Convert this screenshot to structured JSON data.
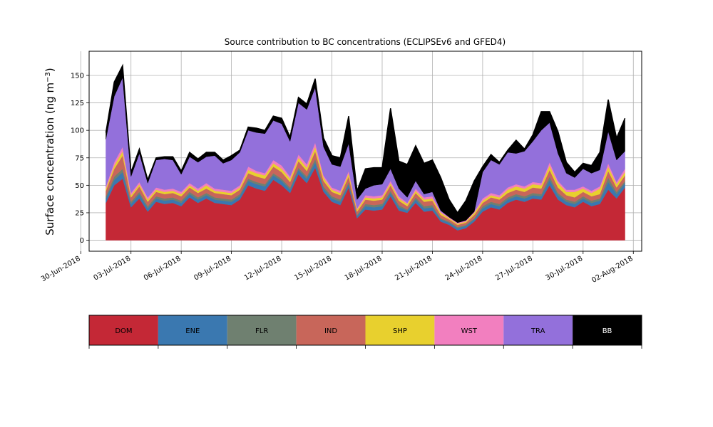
{
  "chart_data": {
    "type": "area",
    "title": "Source contribution to BC concentrations (ECLIPSEv6 and GFED4)",
    "ylabel": "Surface concentration (ng m",
    "ylabel_sup": "−3",
    "ylabel_close": ")",
    "xlabel": "",
    "ylim": [
      -10,
      172
    ],
    "yticks": [
      0,
      25,
      50,
      75,
      100,
      125,
      150
    ],
    "xlim": [
      "2018-06-30T12:00",
      "2018-08-02T12:00"
    ],
    "xticks": [
      "30-Jun-2018",
      "03-Jul-2018",
      "06-Jul-2018",
      "09-Jul-2018",
      "12-Jul-2018",
      "15-Jul-2018",
      "18-Jul-2018",
      "21-Jul-2018",
      "24-Jul-2018",
      "27-Jul-2018",
      "30-Jul-2018",
      "02-Aug-2018"
    ],
    "xtick_dates": [
      "2018-06-30",
      "2018-07-03",
      "2018-07-06",
      "2018-07-09",
      "2018-07-12",
      "2018-07-15",
      "2018-07-18",
      "2018-07-21",
      "2018-07-24",
      "2018-07-27",
      "2018-07-30",
      "2018-08-02"
    ],
    "grid": true,
    "legend_position": "below",
    "x": [
      "2018-07-01T12:00",
      "2018-07-02T00:00",
      "2018-07-02T12:00",
      "2018-07-03T00:00",
      "2018-07-03T12:00",
      "2018-07-04T00:00",
      "2018-07-04T12:00",
      "2018-07-05T00:00",
      "2018-07-05T12:00",
      "2018-07-06T00:00",
      "2018-07-06T12:00",
      "2018-07-07T00:00",
      "2018-07-07T12:00",
      "2018-07-08T00:00",
      "2018-07-08T12:00",
      "2018-07-09T00:00",
      "2018-07-09T12:00",
      "2018-07-10T00:00",
      "2018-07-10T12:00",
      "2018-07-11T00:00",
      "2018-07-11T12:00",
      "2018-07-12T00:00",
      "2018-07-12T12:00",
      "2018-07-13T00:00",
      "2018-07-13T12:00",
      "2018-07-14T00:00",
      "2018-07-14T12:00",
      "2018-07-15T00:00",
      "2018-07-15T12:00",
      "2018-07-16T00:00",
      "2018-07-16T12:00",
      "2018-07-17T00:00",
      "2018-07-17T12:00",
      "2018-07-18T00:00",
      "2018-07-18T12:00",
      "2018-07-19T00:00",
      "2018-07-19T12:00",
      "2018-07-20T00:00",
      "2018-07-20T12:00",
      "2018-07-21T00:00",
      "2018-07-21T12:00",
      "2018-07-22T00:00",
      "2018-07-22T12:00",
      "2018-07-23T00:00",
      "2018-07-23T12:00",
      "2018-07-24T00:00",
      "2018-07-24T12:00",
      "2018-07-25T00:00",
      "2018-07-25T12:00",
      "2018-07-26T00:00",
      "2018-07-26T12:00",
      "2018-07-27T00:00",
      "2018-07-27T12:00",
      "2018-07-28T00:00",
      "2018-07-28T12:00",
      "2018-07-29T00:00",
      "2018-07-29T12:00",
      "2018-07-30T00:00",
      "2018-07-30T12:00",
      "2018-07-31T00:00",
      "2018-07-31T12:00",
      "2018-08-01T00:00",
      "2018-08-01T12:00"
    ],
    "series": [
      {
        "name": "DOM",
        "color": "#c42836",
        "values": [
          34,
          50,
          56,
          30,
          38,
          26,
          35,
          33,
          34,
          31,
          39,
          34,
          38,
          34,
          33,
          32,
          37,
          50,
          47,
          45,
          55,
          50,
          43,
          60,
          52,
          66,
          44,
          35,
          32,
          48,
          20,
          28,
          27,
          28,
          40,
          27,
          25,
          34,
          26,
          27,
          17,
          14,
          9,
          11,
          17,
          26,
          30,
          28,
          34,
          37,
          35,
          38,
          37,
          50,
          37,
          32,
          30,
          35,
          31,
          33,
          46,
          38,
          48
        ]
      },
      {
        "name": "ENE",
        "color": "#3a78b0",
        "values": [
          4,
          5,
          6,
          3,
          4,
          3,
          3,
          3,
          3,
          3,
          3,
          3,
          3,
          3,
          3,
          3,
          3,
          4,
          4,
          4,
          4,
          4,
          3,
          4,
          4,
          5,
          3,
          3,
          3,
          3,
          2,
          3,
          3,
          3,
          3,
          3,
          2,
          3,
          3,
          3,
          2,
          2,
          2,
          2,
          2,
          3,
          3,
          3,
          3,
          3,
          3,
          3,
          3,
          5,
          4,
          3,
          3,
          3,
          3,
          3,
          7,
          4,
          4
        ]
      },
      {
        "name": "FLR",
        "color": "#6f8070",
        "values": [
          2,
          3,
          3,
          2,
          2,
          2,
          2,
          2,
          2,
          2,
          2,
          2,
          2,
          2,
          2,
          2,
          2,
          2,
          2,
          2,
          2,
          2,
          2,
          2,
          2,
          3,
          2,
          2,
          2,
          2,
          1,
          2,
          2,
          2,
          2,
          2,
          1,
          2,
          2,
          2,
          1,
          1,
          1,
          1,
          1,
          2,
          2,
          2,
          2,
          2,
          2,
          2,
          2,
          3,
          2,
          2,
          2,
          2,
          2,
          2,
          4,
          2,
          2
        ]
      },
      {
        "name": "IND",
        "color": "#c8665a",
        "values": [
          5,
          7,
          12,
          4,
          5,
          4,
          4,
          4,
          4,
          4,
          4,
          4,
          4,
          4,
          4,
          4,
          4,
          5,
          5,
          5,
          6,
          6,
          5,
          6,
          5,
          7,
          5,
          4,
          4,
          5,
          3,
          4,
          4,
          4,
          5,
          4,
          3,
          4,
          4,
          4,
          3,
          2,
          2,
          2,
          3,
          3,
          4,
          4,
          4,
          4,
          4,
          5,
          5,
          6,
          5,
          4,
          4,
          4,
          4,
          4,
          6,
          4,
          5
        ]
      },
      {
        "name": "SHP",
        "color": "#e8d02e",
        "values": [
          2,
          3,
          4,
          2,
          2,
          2,
          2,
          2,
          2,
          2,
          2,
          2,
          3,
          2,
          2,
          2,
          2,
          3,
          3,
          3,
          3,
          3,
          3,
          3,
          3,
          4,
          3,
          2,
          2,
          3,
          2,
          2,
          2,
          2,
          2,
          2,
          2,
          2,
          2,
          2,
          2,
          1,
          1,
          1,
          2,
          2,
          2,
          2,
          3,
          3,
          3,
          3,
          3,
          4,
          4,
          3,
          5,
          3,
          3,
          5,
          4,
          3,
          3
        ]
      },
      {
        "name": "WST",
        "color": "#f27fbf",
        "values": [
          2,
          3,
          4,
          2,
          2,
          2,
          2,
          2,
          2,
          2,
          2,
          2,
          2,
          2,
          2,
          2,
          2,
          3,
          2,
          2,
          3,
          3,
          2,
          3,
          3,
          4,
          2,
          2,
          2,
          2,
          1,
          2,
          2,
          2,
          2,
          2,
          1,
          2,
          2,
          2,
          1,
          1,
          1,
          1,
          1,
          2,
          2,
          2,
          2,
          2,
          2,
          2,
          2,
          3,
          2,
          2,
          2,
          2,
          2,
          2,
          3,
          2,
          3
        ]
      },
      {
        "name": "TRA",
        "color": "#9370db",
        "values": [
          43,
          60,
          63,
          15,
          26,
          13,
          25,
          28,
          26,
          16,
          24,
          24,
          24,
          30,
          24,
          28,
          30,
          33,
          35,
          36,
          36,
          38,
          32,
          47,
          50,
          50,
          26,
          21,
          22,
          25,
          8,
          6,
          10,
          10,
          11,
          7,
          5,
          7,
          3,
          4,
          1,
          0,
          0,
          0,
          0,
          24,
          30,
          28,
          32,
          28,
          32,
          37,
          48,
          36,
          25,
          15,
          11,
          16,
          16,
          15,
          29,
          20,
          16
        ]
      },
      {
        "name": "BB",
        "color": "#000000",
        "values": [
          6,
          13,
          11,
          4,
          4,
          3,
          2,
          2,
          3,
          3,
          4,
          3,
          4,
          3,
          3,
          4,
          2,
          3,
          4,
          3,
          4,
          5,
          4,
          5,
          5,
          8,
          8,
          8,
          8,
          25,
          8,
          18,
          16,
          15,
          55,
          25,
          30,
          32,
          28,
          29,
          30,
          16,
          9,
          18,
          28,
          5,
          5,
          2,
          2,
          12,
          2,
          6,
          17,
          10,
          20,
          10,
          5,
          5,
          7,
          16,
          29,
          20,
          30
        ]
      }
    ]
  },
  "legend": {
    "items": [
      {
        "label": "DOM",
        "color": "#c42836",
        "text_color": "#000000"
      },
      {
        "label": "ENE",
        "color": "#3a78b0",
        "text_color": "#000000"
      },
      {
        "label": "FLR",
        "color": "#6f8070",
        "text_color": "#000000"
      },
      {
        "label": "IND",
        "color": "#c8665a",
        "text_color": "#000000"
      },
      {
        "label": "SHP",
        "color": "#e8d02e",
        "text_color": "#000000"
      },
      {
        "label": "WST",
        "color": "#f27fbf",
        "text_color": "#000000"
      },
      {
        "label": "TRA",
        "color": "#9370db",
        "text_color": "#000000"
      },
      {
        "label": "BB",
        "color": "#000000",
        "text_color": "#ffffff"
      }
    ]
  }
}
